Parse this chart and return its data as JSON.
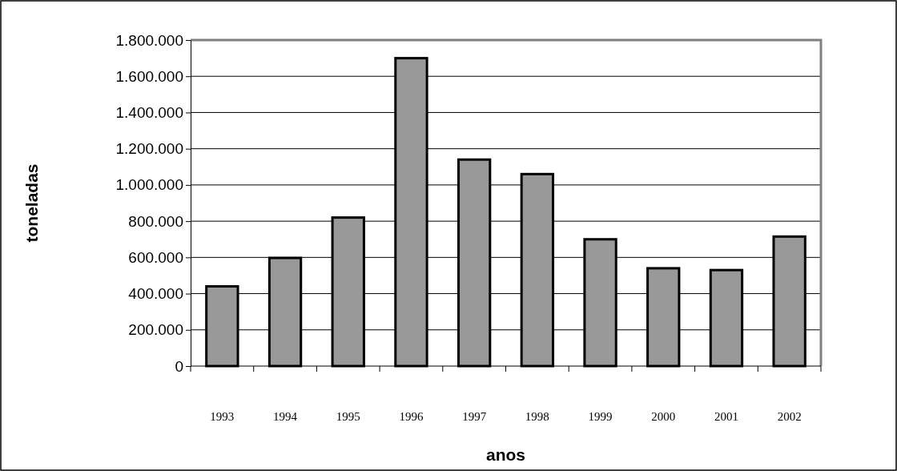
{
  "chart_data": {
    "type": "bar",
    "xlabel": "anos",
    "ylabel": "toneladas",
    "categories": [
      "1993",
      "1994",
      "1995",
      "1996",
      "1997",
      "1998",
      "1999",
      "2000",
      "2001",
      "2002"
    ],
    "values": [
      440000,
      597000,
      820000,
      1700000,
      1140000,
      1060000,
      700000,
      540000,
      530000,
      715000
    ],
    "color": "#999999",
    "ylim": [
      0,
      1800000
    ],
    "yticks": [
      0,
      {
        "value": 200000,
        "label": "200.000"
      },
      {
        "value": 400000,
        "label": "400.000"
      },
      {
        "value": 600000,
        "label": "600.000"
      },
      {
        "value": 800000,
        "label": "800.000"
      },
      {
        "value": 1000000,
        "label": "1.000.000"
      },
      {
        "value": 1200000,
        "label": "1.200.000"
      },
      {
        "value": 1400000,
        "label": "1.400.000"
      },
      {
        "value": 1600000,
        "label": "1.600.000"
      },
      {
        "value": 1800000,
        "label": "1.800.000"
      }
    ],
    "grid": "y"
  }
}
